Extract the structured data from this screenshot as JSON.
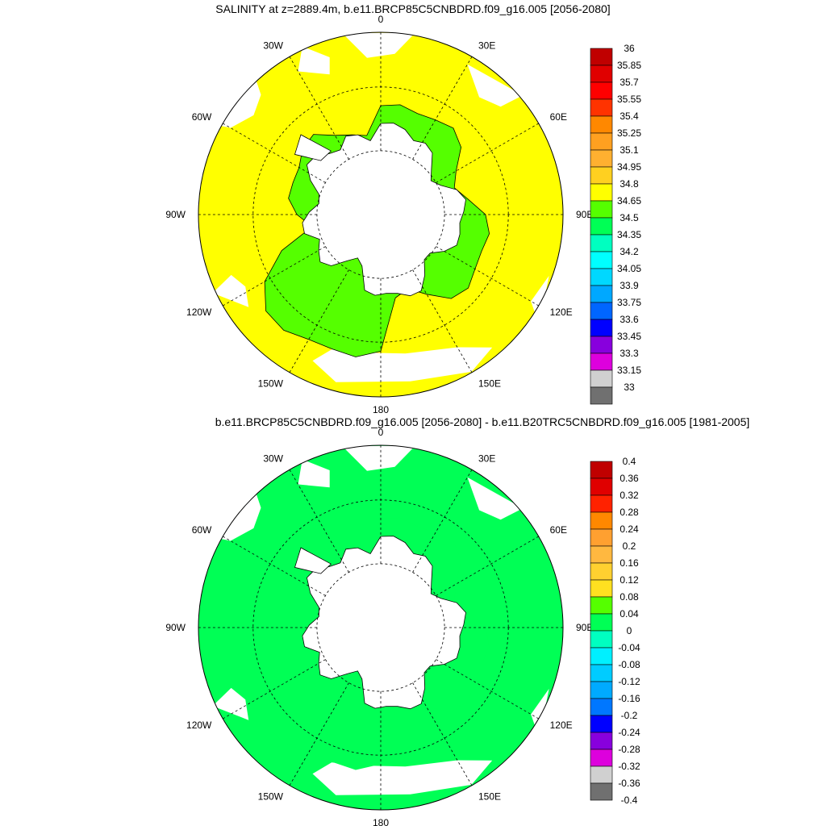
{
  "panels": [
    {
      "title": "SALINITY at z=2889.4m, b.e11.BRCP85C5CNBDRD.f09_g16.005 [2056-2080]",
      "lon_labels": [
        "0",
        "30E",
        "60E",
        "90E",
        "120E",
        "150E",
        "180",
        "150W",
        "120W",
        "90W",
        "60W",
        "30W"
      ],
      "colorbar": {
        "labels": [
          "36",
          "35.85",
          "35.7",
          "35.55",
          "35.4",
          "35.25",
          "35.1",
          "34.95",
          "34.8",
          "34.65",
          "34.5",
          "34.35",
          "34.2",
          "34.05",
          "33.9",
          "33.75",
          "33.6",
          "33.45",
          "33.3",
          "33.15",
          "33"
        ],
        "colors": [
          "#c00000",
          "#e00000",
          "#ff0000",
          "#ff3300",
          "#ff8800",
          "#ffa020",
          "#ffb030",
          "#ffd020",
          "#ffff00",
          "#55ff00",
          "#00ff55",
          "#00ffc0",
          "#00ffff",
          "#00d8ff",
          "#00a8ff",
          "#0066ff",
          "#0000ff",
          "#8800dd",
          "#dd00dd",
          "#d0d0d0",
          "#707070"
        ]
      },
      "fills": {
        "ocean": "#ffff00",
        "antarctic_band": "#55ff00",
        "coast_band": "#ffff00",
        "land": "#ffffff"
      }
    },
    {
      "title": "b.e11.BRCP85C5CNBDRD.f09_g16.005 [2056-2080] - b.e11.B20TRC5CNBDRD.f09_g16.005 [1981-2005]",
      "lon_labels": [
        "0",
        "30E",
        "60E",
        "90E",
        "120E",
        "150E",
        "180",
        "150W",
        "120W",
        "90W",
        "60W",
        "30W"
      ],
      "colorbar": {
        "labels": [
          "0.4",
          "0.36",
          "0.32",
          "0.28",
          "0.24",
          "0.2",
          "0.16",
          "0.12",
          "0.08",
          "0.04",
          "0",
          "-0.04",
          "-0.08",
          "-0.12",
          "-0.16",
          "-0.2",
          "-0.24",
          "-0.28",
          "-0.32",
          "-0.36",
          "-0.4"
        ],
        "colors": [
          "#c00000",
          "#e00000",
          "#ff2200",
          "#ff8800",
          "#ffa030",
          "#ffb840",
          "#ffd030",
          "#ffe020",
          "#55ff00",
          "#00ff55",
          "#00ffc0",
          "#00f0ff",
          "#00ccff",
          "#00aaff",
          "#0077ff",
          "#0000ff",
          "#8800dd",
          "#dd00dd",
          "#d0d0d0",
          "#707070"
        ]
      },
      "fills": {
        "ocean": "#00ff55",
        "antarctic_band": "#00ff55",
        "coast_band": "#00ff55",
        "land": "#ffffff",
        "small_patch": "#00ffc0"
      }
    }
  ]
}
